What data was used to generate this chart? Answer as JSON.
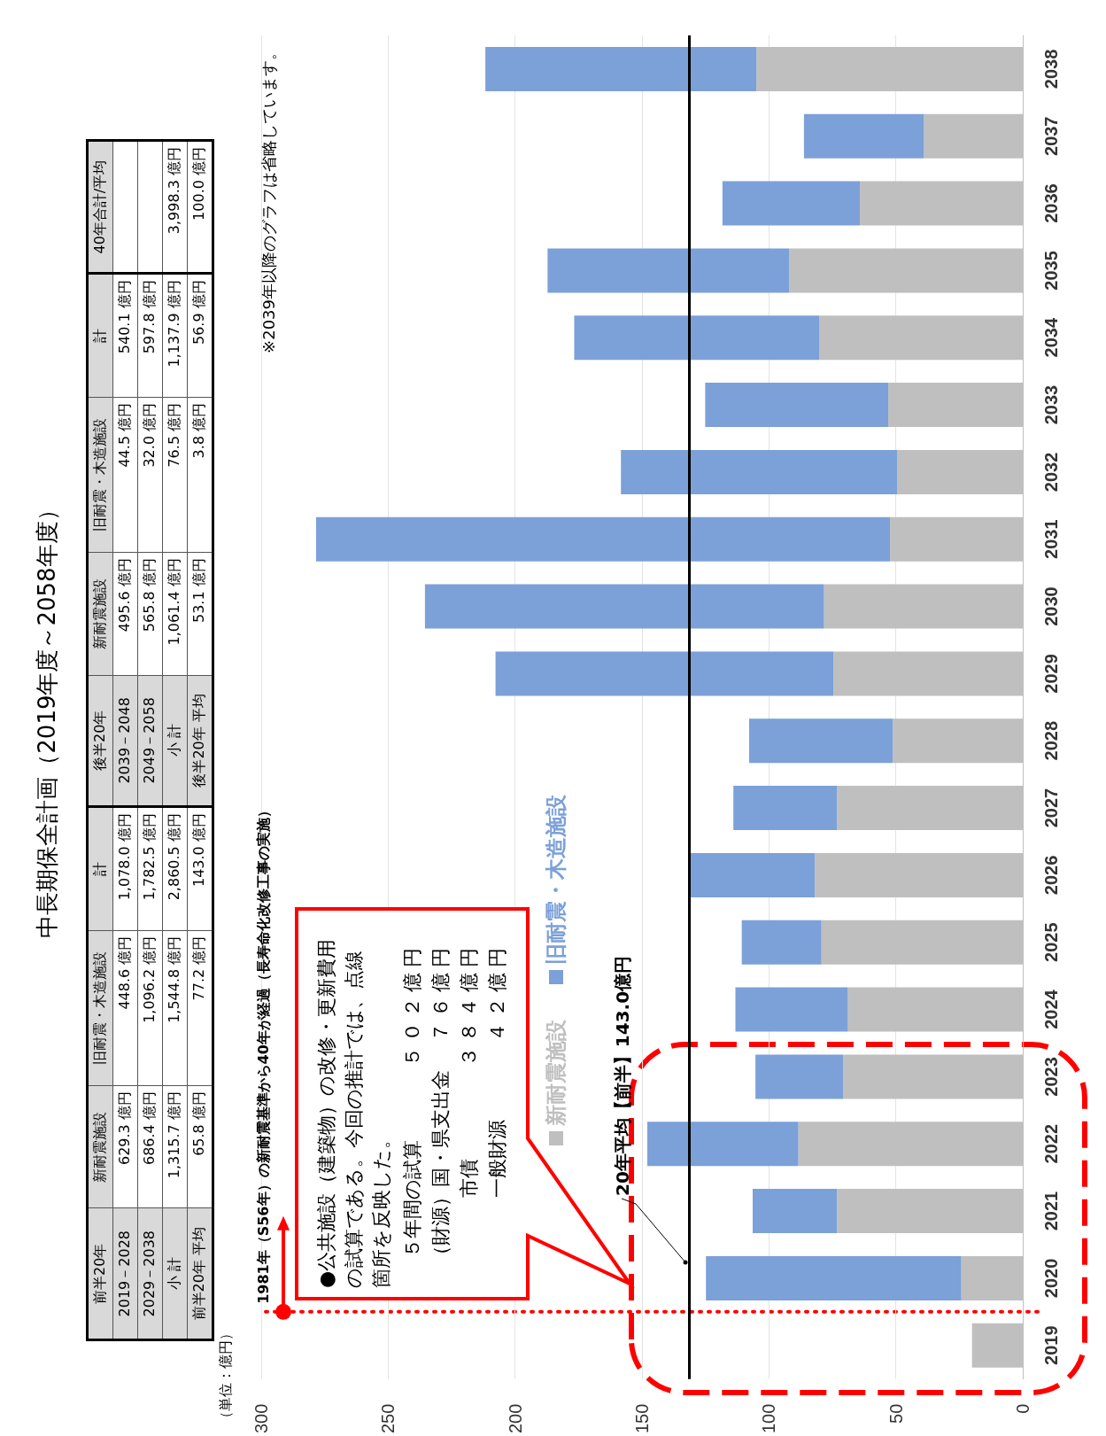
{
  "chart_data": [
    {
      "type": "other",
      "title": "中長期保全計画（2019年度～2058年度）",
      "categories": [
        "前半20年",
        "新耐震施設",
        "旧耐震・木造施設",
        "計",
        "後半20年",
        "新耐震施設",
        "旧耐震・木造施設",
        "計",
        "40年合計/平均"
      ],
      "annotations": [
        "2019－2028",
        "629.3 億円",
        "448.6 億円",
        "1,078.0 億円",
        "2039－2048",
        "495.6 億円",
        "44.5 億円",
        "540.1 億円",
        null,
        "2029－2038",
        "686.4 億円",
        "1,096.2 億円",
        "1,782.5 億円",
        "2049－2058",
        "565.8 億円",
        "32.0 億円",
        "597.8 億円",
        null,
        "小 計",
        "1,315.7 億円",
        "1,544.8 億円",
        "2,860.5 億円",
        "小 計",
        "1,061.4 億円",
        "76.5 億円",
        "1,137.9 億円",
        "3,998.3 億円",
        "前半20年 平均",
        "65.8 億円",
        "77.2 億円",
        "143.0 億円",
        "後半20年 平均",
        "53.1 億円",
        "3.8 億円",
        "56.9 億円",
        "100.0 億円"
      ]
    },
    {
      "type": "bar",
      "stacked": true,
      "orientation": "horizontal",
      "categories": [
        "2038",
        "2037",
        "2036",
        "2035",
        "2034",
        "2033",
        "2032",
        "2031",
        "2030",
        "2029",
        "2028",
        "2027",
        "2026",
        "2025",
        "2024",
        "2023",
        "2022",
        "2021",
        "2020",
        "2019"
      ],
      "series": [
        {
          "name": "新耐震施設",
          "color": "#bfbfbf",
          "values": [
            104.9,
            38.9,
            64.2,
            92.0,
            80.1,
            53.0,
            49.4,
            52.3,
            78.3,
            74.6,
            51.2,
            73.2,
            81.9,
            79.3,
            68.9,
            70.7,
            88.4,
            73.2,
            24.2,
            20
          ]
        },
        {
          "name": "旧耐震・木造施設",
          "color": "#7ca0d8",
          "values": [
            106.8,
            47.3,
            54.1,
            95.2,
            96.6,
            72.1,
            108.9,
            226.1,
            157.2,
            133.1,
            56.6,
            40.8,
            49.4,
            31.4,
            44.3,
            34.6,
            59.5,
            33.2,
            100.6,
            null
          ]
        }
      ],
      "xlim": [
        300,
        0
      ],
      "xticks": [
        300,
        250,
        200,
        150,
        100,
        50,
        0
      ],
      "grid": "x",
      "legend": "left",
      "ref_lines": [
        {
          "axis": "x",
          "value": 131.5,
          "label": "20年平均【前半】143.0億円",
          "color": "#000000",
          "line_style": "solid"
        },
        {
          "axis": "y",
          "value": "2020",
          "label": "1981年（S56年）の新耐震基準から40年が経過（長寿命化改修工事の実施）",
          "color": "#ff0000",
          "line_style": "dotted"
        }
      ],
      "annotations": [
        "（単位：億円）",
        "※2039年以降のグラフは省略しています。",
        "●公共施設（建築物）の改修・更新費用の試算である。今回の推計では、点線箇所を反映した。",
        "５年間の試算",
        "５０２億円",
        "（財源）国・県支出金",
        "７６億円",
        "市債",
        "３８４億円",
        "一般財源",
        "４２億円"
      ]
    }
  ]
}
